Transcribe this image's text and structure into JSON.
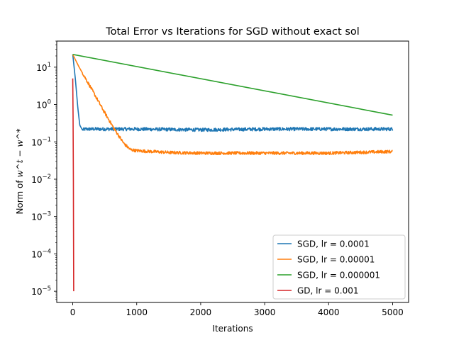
{
  "chart_data": {
    "type": "line",
    "title": "Total Error vs Iterations for SGD without exact sol",
    "xlabel": "Iterations",
    "ylabel_prefix": "Norm of ",
    "ylabel_math": "w^t − w^*",
    "yscale": "log",
    "xlim": [
      -250,
      5250
    ],
    "ylim": [
      5e-06,
      50
    ],
    "xticks": [
      0,
      1000,
      2000,
      3000,
      4000,
      5000
    ],
    "xtick_labels": [
      "0",
      "1000",
      "2000",
      "3000",
      "4000",
      "5000"
    ],
    "yticks": [
      1e-05,
      0.0001,
      0.001,
      0.01,
      0.1,
      1,
      10
    ],
    "ytick_labels": [
      {
        "base": "10",
        "exp": "−5"
      },
      {
        "base": "10",
        "exp": "−4"
      },
      {
        "base": "10",
        "exp": "−3"
      },
      {
        "base": "10",
        "exp": "−2"
      },
      {
        "base": "10",
        "exp": "−1"
      },
      {
        "base": "10",
        "exp": "0"
      },
      {
        "base": "10",
        "exp": "1"
      }
    ],
    "grid": false,
    "legend_position": "lower-right",
    "series": [
      {
        "name": "SGD, lr = 0.0001",
        "color": "#1f77b4",
        "points": [
          [
            0,
            22
          ],
          [
            40,
            5
          ],
          [
            80,
            0.8
          ],
          [
            110,
            0.28
          ],
          [
            150,
            0.21
          ],
          [
            200,
            0.22
          ],
          [
            300,
            0.22
          ],
          [
            500,
            0.22
          ],
          [
            1000,
            0.22
          ],
          [
            2000,
            0.21
          ],
          [
            3000,
            0.22
          ],
          [
            4000,
            0.22
          ],
          [
            5000,
            0.22
          ]
        ],
        "noise": 0.045
      },
      {
        "name": "SGD, lr = 0.00001",
        "color": "#ff7f0e",
        "points": [
          [
            0,
            22
          ],
          [
            100,
            10
          ],
          [
            300,
            2.5
          ],
          [
            500,
            0.6
          ],
          [
            650,
            0.22
          ],
          [
            800,
            0.09
          ],
          [
            900,
            0.062
          ],
          [
            1000,
            0.058
          ],
          [
            1500,
            0.052
          ],
          [
            2000,
            0.05
          ],
          [
            3000,
            0.05
          ],
          [
            4000,
            0.05
          ],
          [
            5000,
            0.055
          ]
        ],
        "noise": 0.04
      },
      {
        "name": "SGD, lr = 0.000001",
        "color": "#2ca02c",
        "points": [
          [
            0,
            22
          ],
          [
            5000,
            0.52
          ]
        ],
        "noise": 0
      },
      {
        "name": "GD, lr = 0.001",
        "color": "#d62728",
        "points": [
          [
            0,
            5
          ],
          [
            5,
            0.5
          ],
          [
            10,
            0.01
          ],
          [
            12,
            0.0005
          ],
          [
            15,
            1e-05
          ]
        ],
        "noise": 0
      }
    ]
  }
}
